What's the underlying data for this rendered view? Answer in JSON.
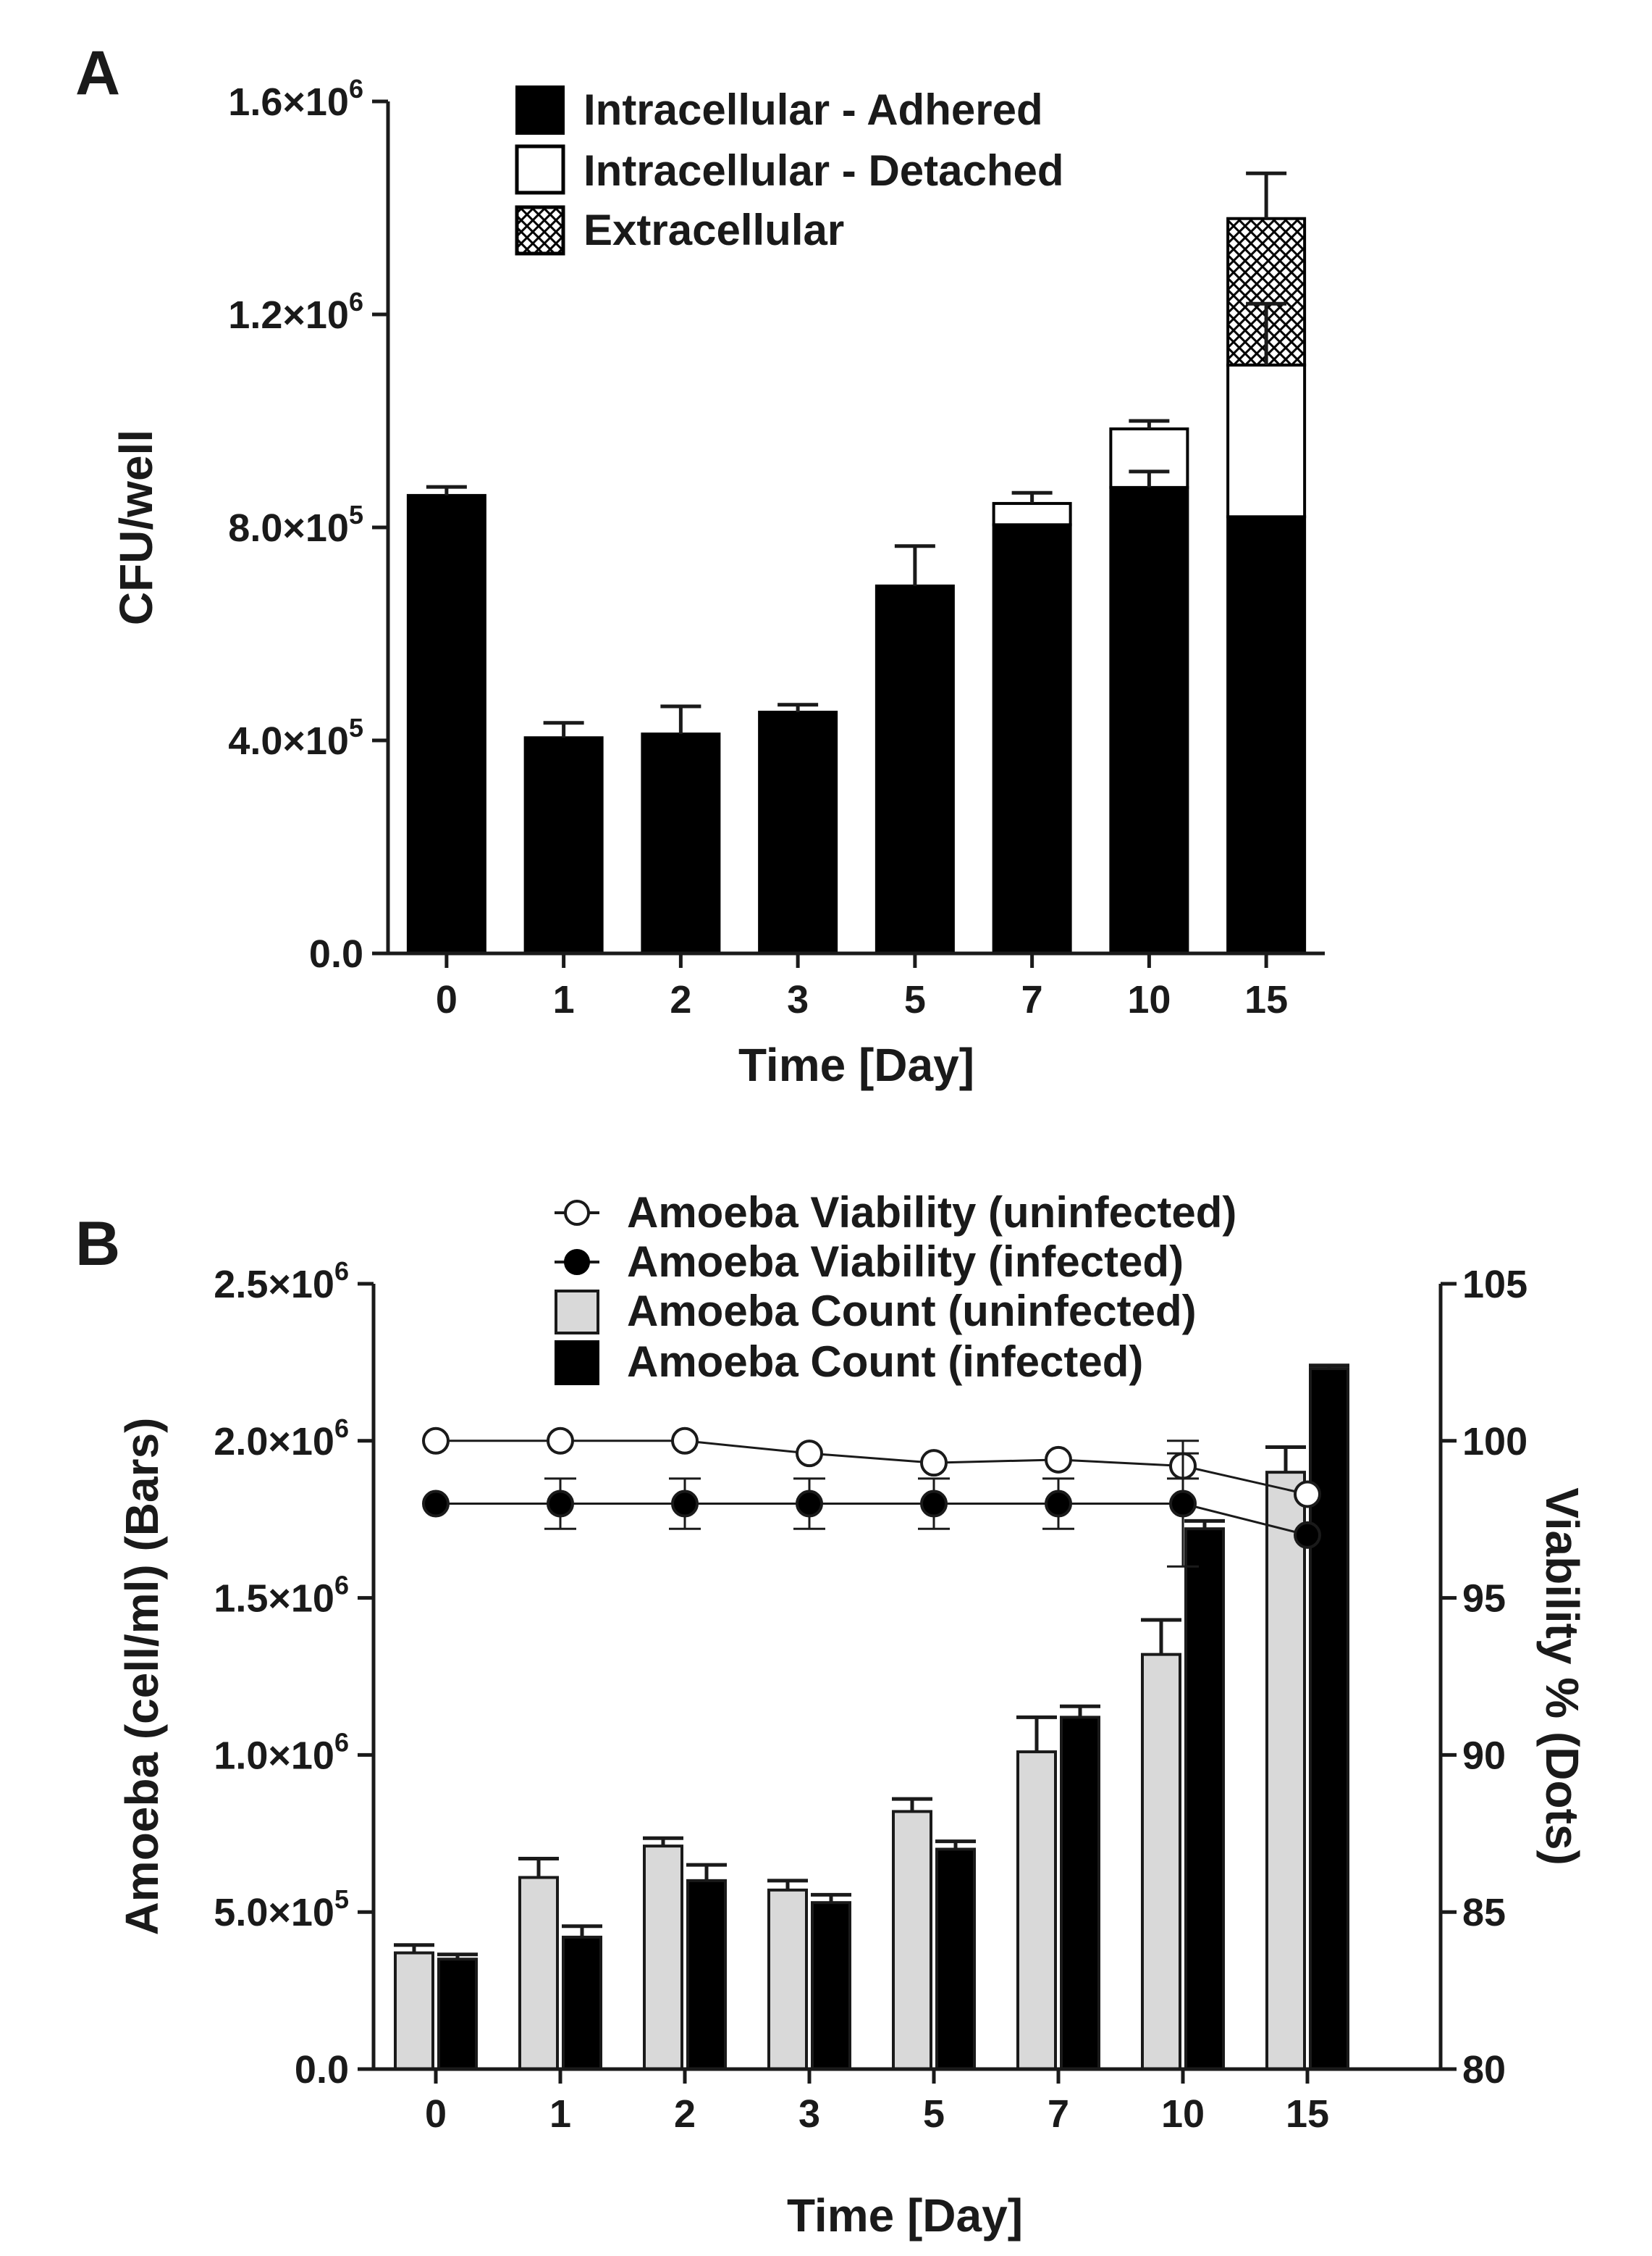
{
  "colors": {
    "adhered": "#000000",
    "detached": "#ffffff",
    "extracellular_pattern": "crosshatch",
    "count_uninfected": "#d9d9d9",
    "count_infected": "#000000",
    "axis": "#1a1a1a"
  },
  "chart_data": [
    {
      "panel": "A",
      "type": "bar",
      "stacked": true,
      "categories": [
        "0",
        "1",
        "2",
        "3",
        "5",
        "7",
        "10",
        "15"
      ],
      "series": [
        {
          "name": "Intracellular - Adhered",
          "values": [
            860000,
            405000,
            412000,
            453000,
            690000,
            805000,
            875000,
            820000
          ]
        },
        {
          "name": "Intracellular - Detached",
          "values": [
            0,
            0,
            0,
            0,
            0,
            40000,
            110000,
            285000
          ]
        },
        {
          "name": "Extracellular",
          "values": [
            0,
            0,
            0,
            0,
            0,
            0,
            0,
            275000
          ]
        }
      ],
      "error_bars": [
        {
          "category": "0",
          "top": 860000,
          "err": 16000
        },
        {
          "category": "1",
          "top": 405000,
          "err": 28000
        },
        {
          "category": "2",
          "top": 412000,
          "err": 52000
        },
        {
          "category": "3",
          "top": 453000,
          "err": 14000
        },
        {
          "category": "5",
          "top": 690000,
          "err": 75000
        },
        {
          "category": "7",
          "top": 845000,
          "err": 20000
        },
        {
          "category": "10",
          "top": 875000,
          "err": 30000
        },
        {
          "category": "10",
          "top": 985000,
          "err": 15000
        },
        {
          "category": "15",
          "top": 1105000,
          "err": 115000
        },
        {
          "category": "15",
          "top": 1380000,
          "err": 85000
        }
      ],
      "xlabel": "Time  [Day]",
      "ylabel": "CFU/well",
      "ylim": [
        0,
        1600000
      ],
      "yticks": [
        {
          "value": 0,
          "mant": "0.0",
          "exp": ""
        },
        {
          "value": 400000,
          "mant": "4.0×10",
          "exp": "5"
        },
        {
          "value": 800000,
          "mant": "8.0×10",
          "exp": "5"
        },
        {
          "value": 1200000,
          "mant": "1.2×10",
          "exp": "6"
        },
        {
          "value": 1600000,
          "mant": "1.6×10",
          "exp": "6"
        }
      ],
      "legend_position": "top"
    },
    {
      "panel": "B",
      "type": "bar",
      "categories": [
        "0",
        "1",
        "2",
        "3",
        "5",
        "7",
        "10",
        "15"
      ],
      "series": [
        {
          "name": "Amoeba Count (uninfected)",
          "axis": "left",
          "values": [
            370000,
            610000,
            710000,
            570000,
            820000,
            1010000,
            1320000,
            1900000
          ],
          "errors": [
            25000,
            60000,
            25000,
            30000,
            40000,
            110000,
            110000,
            80000
          ]
        },
        {
          "name": "Amoeba Count (infected)",
          "axis": "left",
          "values": [
            350000,
            420000,
            600000,
            530000,
            700000,
            1120000,
            1720000,
            2230000
          ],
          "errors": [
            15000,
            35000,
            50000,
            25000,
            25000,
            35000,
            25000,
            10000
          ]
        },
        {
          "name": "Amoeba Viability (uninfected)",
          "axis": "right",
          "kind": "line",
          "values": [
            100,
            100,
            100,
            99.6,
            99.3,
            99.4,
            99.2,
            98.3
          ],
          "errors": [
            0,
            0,
            0,
            0,
            0,
            0,
            0.4,
            0
          ]
        },
        {
          "name": "Amoeba Viability (infected)",
          "axis": "right",
          "kind": "line",
          "values": [
            98,
            98,
            98,
            98,
            98,
            98,
            98,
            97
          ],
          "errors": [
            0,
            0.8,
            0.8,
            0.8,
            0.8,
            0.8,
            2.0,
            0
          ]
        }
      ],
      "xlabel": "Time  [Day]",
      "ylabel": "Amoeba (cell/ml) (Bars)",
      "y2label": "Viability % (Dots)",
      "ylim": [
        0,
        2500000
      ],
      "y2lim": [
        80,
        105
      ],
      "yticks": [
        {
          "value": 0,
          "mant": "0.0",
          "exp": ""
        },
        {
          "value": 500000,
          "mant": "5.0×10",
          "exp": "5"
        },
        {
          "value": 1000000,
          "mant": "1.0×10",
          "exp": "6"
        },
        {
          "value": 1500000,
          "mant": "1.5×10",
          "exp": "6"
        },
        {
          "value": 2000000,
          "mant": "2.0×10",
          "exp": "6"
        },
        {
          "value": 2500000,
          "mant": "2.5×10",
          "exp": "6"
        }
      ],
      "y2ticks": [
        "80",
        "85",
        "90",
        "95",
        "100",
        "105"
      ],
      "legend_position": "top"
    }
  ]
}
